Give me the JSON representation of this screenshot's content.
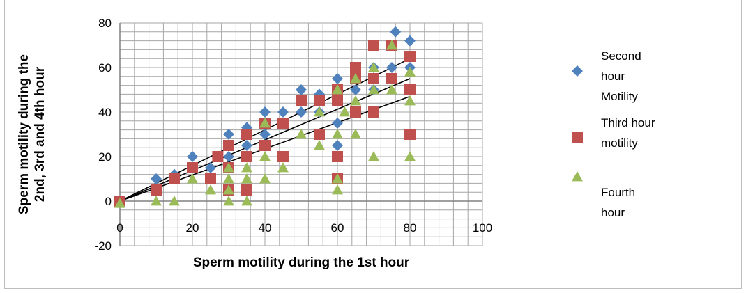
{
  "chart_data": {
    "type": "scatter",
    "title": "",
    "xlabel": "Sperm motility during the 1st hour",
    "ylabel_lines": [
      "Sperm motility during the",
      "2nd, 3rd and 4th hour"
    ],
    "xlim": [
      0,
      100
    ],
    "ylim": [
      -20,
      80
    ],
    "x_ticks": [
      0,
      20,
      40,
      60,
      80,
      100
    ],
    "y_ticks": [
      -20,
      0,
      20,
      40,
      60,
      80
    ],
    "grid": true,
    "legend_position": "right",
    "legend_items": [
      {
        "marker": "diamond",
        "color": "#4f81bd",
        "lines": [
          "Second",
          "hour",
          "Motility"
        ]
      },
      {
        "marker": "square",
        "color": "#c0504d",
        "lines": [
          "Third hour",
          "motility"
        ]
      },
      {
        "marker": "triangle",
        "color": "#9bbb59",
        "lines": [
          "Fourth",
          "hour"
        ]
      }
    ],
    "series": [
      {
        "marker": "diamond",
        "color": "#4f81bd",
        "points": [
          [
            0,
            0
          ],
          [
            10,
            10
          ],
          [
            15,
            12
          ],
          [
            20,
            20
          ],
          [
            25,
            15
          ],
          [
            30,
            30
          ],
          [
            30,
            20
          ],
          [
            35,
            33
          ],
          [
            35,
            25
          ],
          [
            40,
            40
          ],
          [
            40,
            30
          ],
          [
            45,
            40
          ],
          [
            50,
            50
          ],
          [
            50,
            40
          ],
          [
            55,
            48
          ],
          [
            55,
            40
          ],
          [
            60,
            55
          ],
          [
            60,
            35
          ],
          [
            60,
            25
          ],
          [
            65,
            55
          ],
          [
            65,
            50
          ],
          [
            70,
            60
          ],
          [
            70,
            50
          ],
          [
            75,
            60
          ],
          [
            76,
            76
          ],
          [
            80,
            72
          ],
          [
            80,
            60
          ]
        ],
        "trend": [
          [
            0,
            0
          ],
          [
            80,
            64
          ]
        ]
      },
      {
        "marker": "square",
        "color": "#c0504d",
        "points": [
          [
            0,
            0
          ],
          [
            10,
            5
          ],
          [
            15,
            10
          ],
          [
            20,
            15
          ],
          [
            25,
            10
          ],
          [
            27,
            20
          ],
          [
            30,
            25
          ],
          [
            30,
            15
          ],
          [
            30,
            5
          ],
          [
            35,
            30
          ],
          [
            35,
            20
          ],
          [
            35,
            5
          ],
          [
            40,
            35
          ],
          [
            40,
            25
          ],
          [
            45,
            35
          ],
          [
            45,
            20
          ],
          [
            50,
            45
          ],
          [
            55,
            45
          ],
          [
            55,
            30
          ],
          [
            60,
            50
          ],
          [
            60,
            45
          ],
          [
            60,
            20
          ],
          [
            60,
            10
          ],
          [
            65,
            60
          ],
          [
            65,
            55
          ],
          [
            65,
            40
          ],
          [
            70,
            70
          ],
          [
            70,
            55
          ],
          [
            70,
            40
          ],
          [
            75,
            70
          ],
          [
            75,
            55
          ],
          [
            80,
            65
          ],
          [
            80,
            50
          ],
          [
            80,
            30
          ]
        ],
        "trend": [
          [
            0,
            0
          ],
          [
            80,
            55
          ]
        ]
      },
      {
        "marker": "triangle",
        "color": "#9bbb59",
        "points": [
          [
            0,
            -1
          ],
          [
            10,
            0
          ],
          [
            15,
            0
          ],
          [
            20,
            10
          ],
          [
            25,
            5
          ],
          [
            30,
            15
          ],
          [
            30,
            10
          ],
          [
            30,
            5
          ],
          [
            30,
            0
          ],
          [
            35,
            15
          ],
          [
            35,
            10
          ],
          [
            35,
            0
          ],
          [
            40,
            35
          ],
          [
            40,
            20
          ],
          [
            40,
            10
          ],
          [
            45,
            15
          ],
          [
            50,
            30
          ],
          [
            55,
            25
          ],
          [
            55,
            40
          ],
          [
            60,
            50
          ],
          [
            60,
            30
          ],
          [
            60,
            10
          ],
          [
            60,
            5
          ],
          [
            62,
            40
          ],
          [
            65,
            55
          ],
          [
            65,
            45
          ],
          [
            65,
            30
          ],
          [
            70,
            60
          ],
          [
            70,
            50
          ],
          [
            70,
            20
          ],
          [
            75,
            70
          ],
          [
            75,
            50
          ],
          [
            80,
            58
          ],
          [
            80,
            45
          ],
          [
            80,
            20
          ]
        ],
        "trend": [
          [
            0,
            0
          ],
          [
            80,
            47
          ]
        ]
      }
    ]
  }
}
